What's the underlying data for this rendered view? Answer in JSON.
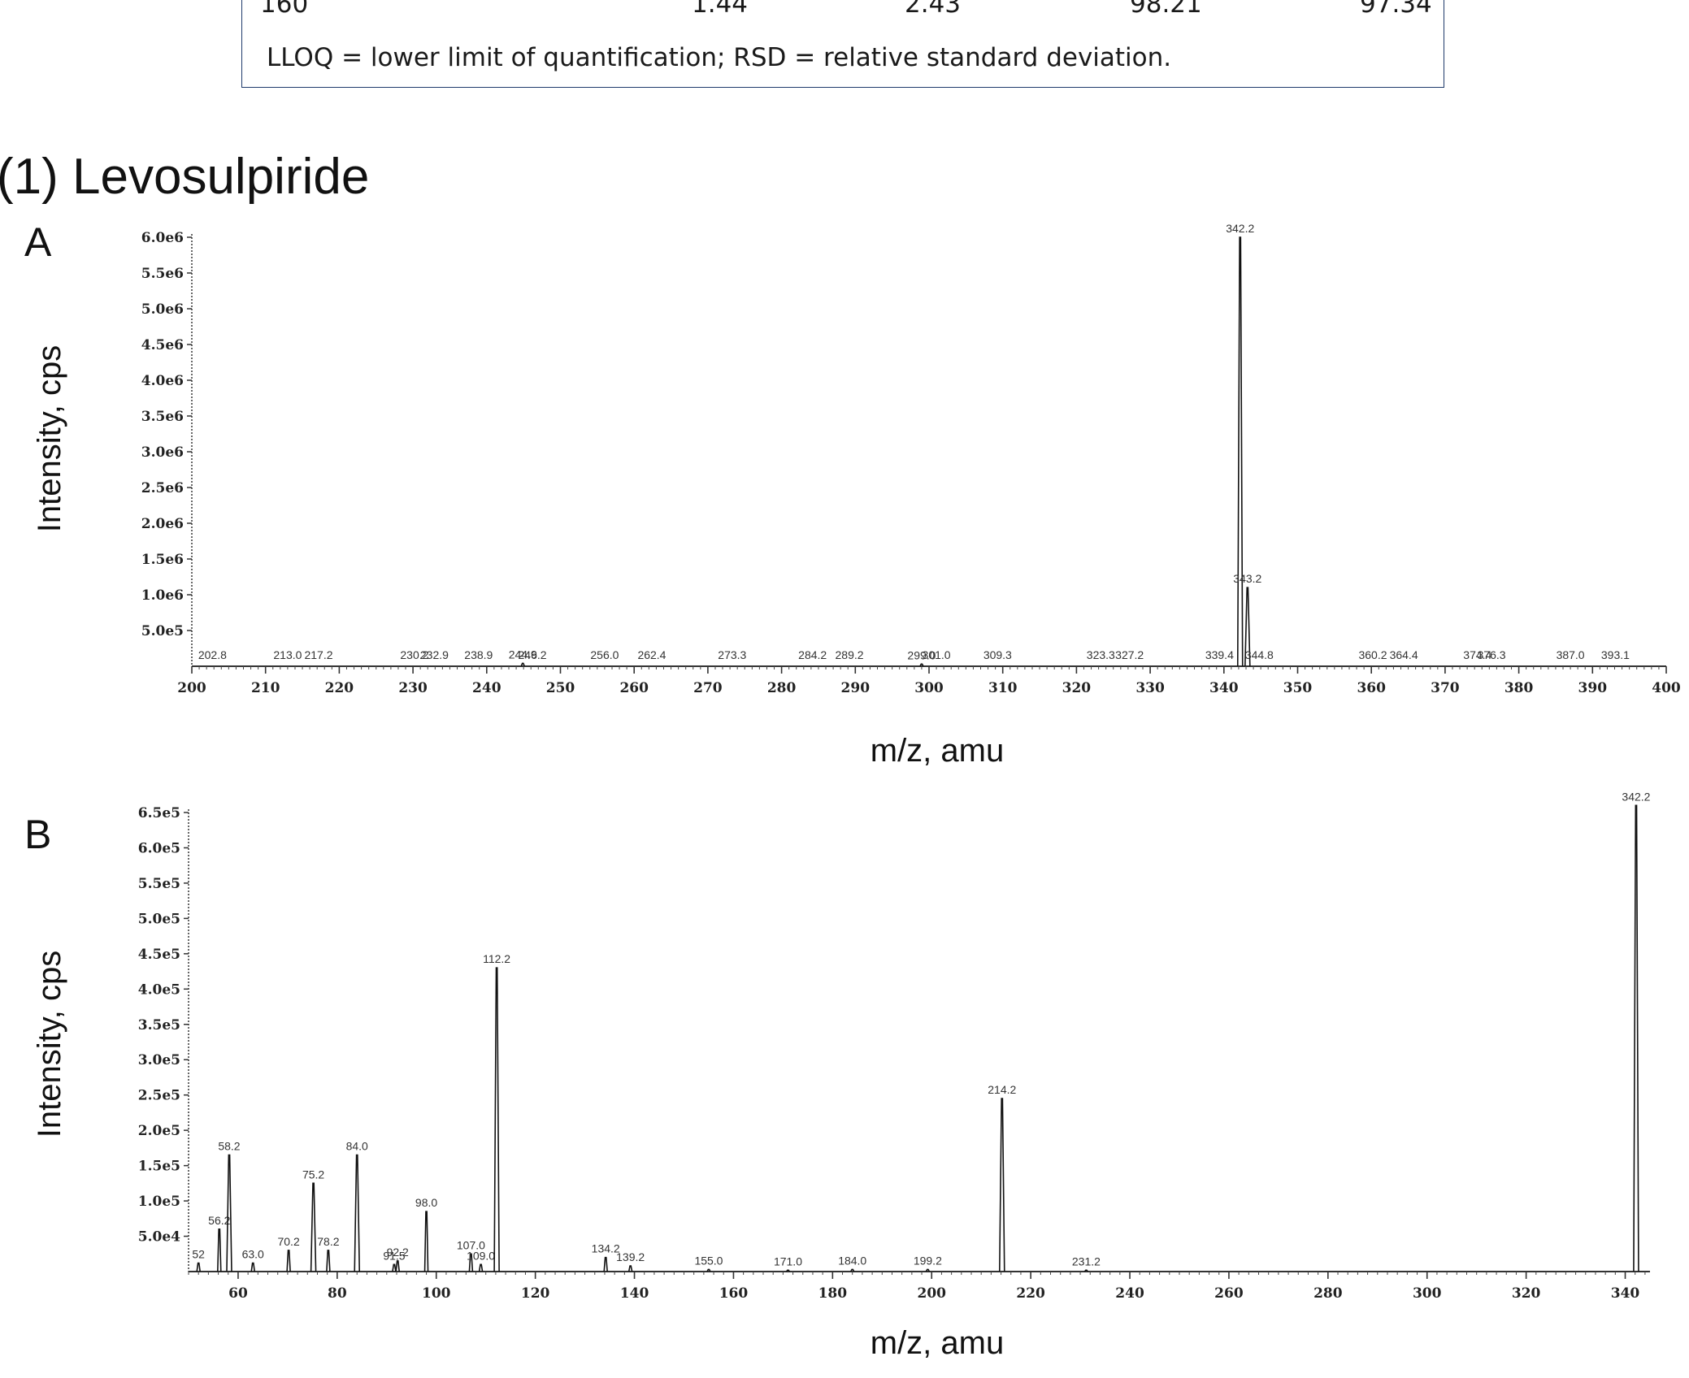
{
  "table": {
    "last_row": [
      "160",
      "1.44",
      "2.43",
      "98.21",
      "97.34"
    ],
    "footnote": "LLOQ = lower limit of quantification; RSD = relative standard deviation."
  },
  "section_title": "(1) Levosulpiride",
  "chart_data": [
    {
      "type": "line",
      "panel": "A",
      "title": "",
      "xlabel": "m/z, amu",
      "ylabel": "Intensity, cps",
      "xlim": [
        200,
        400
      ],
      "ylim": [
        0,
        6000000.0
      ],
      "x_ticks": [
        "200",
        "210",
        "220",
        "230",
        "240",
        "250",
        "260",
        "270",
        "280",
        "290",
        "300",
        "310",
        "320",
        "330",
        "340",
        "350",
        "360",
        "370",
        "380",
        "390",
        "400"
      ],
      "y_ticks": [
        "5.0e5",
        "1.0e6",
        "1.5e6",
        "2.0e6",
        "2.5e6",
        "3.0e6",
        "3.5e6",
        "4.0e6",
        "4.5e6",
        "5.0e6",
        "5.5e6",
        "6.0e6"
      ],
      "peaks": [
        {
          "x": 202.8,
          "y": 0,
          "label": "202.8"
        },
        {
          "x": 213.0,
          "y": 0,
          "label": "213.0"
        },
        {
          "x": 217.2,
          "y": 0,
          "label": "217.2"
        },
        {
          "x": 230.2,
          "y": 0,
          "label": "230.2"
        },
        {
          "x": 232.9,
          "y": 0,
          "label": "232.9"
        },
        {
          "x": 238.9,
          "y": 0,
          "label": "238.9"
        },
        {
          "x": 244.9,
          "y": 40000,
          "label": "244.9"
        },
        {
          "x": 246.2,
          "y": 0,
          "label": "246.2"
        },
        {
          "x": 256.0,
          "y": 0,
          "label": "256.0"
        },
        {
          "x": 262.4,
          "y": 0,
          "label": "262.4"
        },
        {
          "x": 273.3,
          "y": 0,
          "label": "273.3"
        },
        {
          "x": 284.2,
          "y": 0,
          "label": "284.2"
        },
        {
          "x": 289.2,
          "y": 0,
          "label": "289.2"
        },
        {
          "x": 299.0,
          "y": 30000,
          "label": "299.0"
        },
        {
          "x": 301.0,
          "y": 0,
          "label": "301.0"
        },
        {
          "x": 309.3,
          "y": 0,
          "label": "309.3"
        },
        {
          "x": 323.3,
          "y": 0,
          "label": "323.3"
        },
        {
          "x": 327.2,
          "y": 0,
          "label": "327.2"
        },
        {
          "x": 339.4,
          "y": 0,
          "label": "339.4"
        },
        {
          "x": 342.2,
          "y": 6000000,
          "label": "342.2"
        },
        {
          "x": 343.2,
          "y": 1100000,
          "label": "343.2"
        },
        {
          "x": 344.8,
          "y": 0,
          "label": "344.8"
        },
        {
          "x": 360.2,
          "y": 0,
          "label": "360.2"
        },
        {
          "x": 364.4,
          "y": 0,
          "label": "364.4"
        },
        {
          "x": 374.4,
          "y": 0,
          "label": "374.4"
        },
        {
          "x": 376.3,
          "y": 0,
          "label": "376.3"
        },
        {
          "x": 387.0,
          "y": 0,
          "label": "387.0"
        },
        {
          "x": 393.1,
          "y": 0,
          "label": "393.1"
        }
      ]
    },
    {
      "type": "line",
      "panel": "B",
      "title": "",
      "xlabel": "m/z, amu",
      "ylabel": "Intensity, cps",
      "xlim": [
        50,
        345
      ],
      "ylim": [
        0,
        650000.0
      ],
      "x_ticks": [
        "60",
        "80",
        "100",
        "120",
        "140",
        "160",
        "180",
        "200",
        "220",
        "240",
        "260",
        "280",
        "300",
        "320",
        "340"
      ],
      "y_ticks": [
        "5.0e4",
        "1.0e5",
        "1.5e5",
        "2.0e5",
        "2.5e5",
        "3.0e5",
        "3.5e5",
        "4.0e5",
        "4.5e5",
        "5.0e5",
        "5.5e5",
        "6.0e5",
        "6.5e5"
      ],
      "peaks": [
        {
          "x": 52,
          "y": 12000,
          "label": "52"
        },
        {
          "x": 56.2,
          "y": 60000,
          "label": "56.2"
        },
        {
          "x": 58.2,
          "y": 165000,
          "label": "58.2"
        },
        {
          "x": 63.0,
          "y": 12000,
          "label": "63.0"
        },
        {
          "x": 70.2,
          "y": 30000,
          "label": "70.2"
        },
        {
          "x": 75.2,
          "y": 125000,
          "label": "75.2"
        },
        {
          "x": 78.2,
          "y": 30000,
          "label": "78.2"
        },
        {
          "x": 84.0,
          "y": 165000,
          "label": "84.0"
        },
        {
          "x": 92.2,
          "y": 15000,
          "label": "92.2"
        },
        {
          "x": 91.5,
          "y": 10000,
          "label": "91.5"
        },
        {
          "x": 98.0,
          "y": 85000,
          "label": "98.0"
        },
        {
          "x": 107.0,
          "y": 25000,
          "label": "107.0"
        },
        {
          "x": 109.0,
          "y": 10000,
          "label": "109.0"
        },
        {
          "x": 112.2,
          "y": 430000,
          "label": "112.2"
        },
        {
          "x": 134.2,
          "y": 20000,
          "label": "134.2"
        },
        {
          "x": 139.2,
          "y": 8000,
          "label": "139.2"
        },
        {
          "x": 155.0,
          "y": 3000,
          "label": "155.0"
        },
        {
          "x": 171.0,
          "y": 2000,
          "label": "171.0"
        },
        {
          "x": 184.0,
          "y": 3000,
          "label": "184.0"
        },
        {
          "x": 199.2,
          "y": 3000,
          "label": "199.2"
        },
        {
          "x": 214.2,
          "y": 245000,
          "label": "214.2"
        },
        {
          "x": 231.2,
          "y": 2000,
          "label": "231.2"
        },
        {
          "x": 342.2,
          "y": 660000,
          "label": "342.2"
        }
      ]
    }
  ]
}
